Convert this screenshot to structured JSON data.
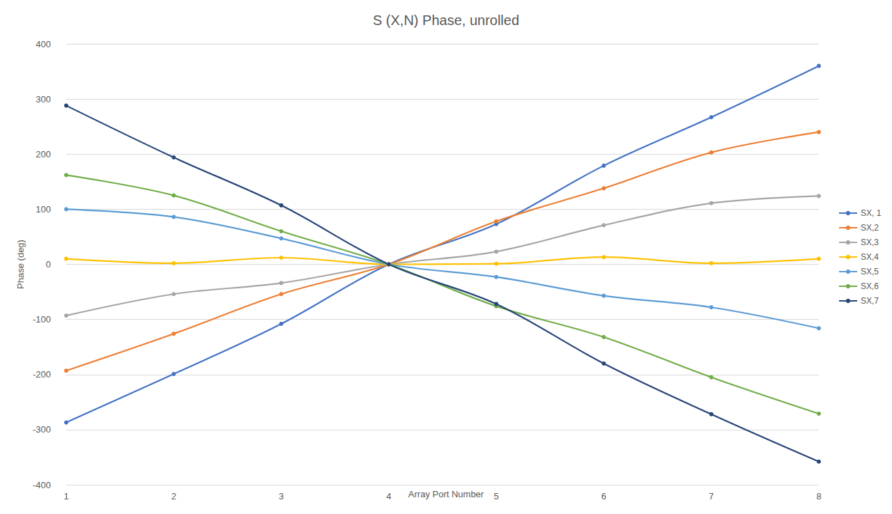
{
  "chart_data": {
    "type": "line",
    "title": "S (X,N) Phase, unrolled",
    "x_label": "Array Port Number",
    "y_label": "Phase (deg)",
    "categories": [
      "1",
      "2",
      "3",
      "4",
      "5",
      "6",
      "7",
      "8"
    ],
    "ylim": [
      -400,
      400
    ],
    "yticks": [
      -400,
      -300,
      -200,
      -100,
      0,
      100,
      200,
      300,
      400
    ],
    "grid": true,
    "legend": "right",
    "marker": "circle",
    "line_style": "solid",
    "series": [
      {
        "name": "SX, 1",
        "color": "#4472c4",
        "values": [
          -287,
          -199,
          -108,
          0,
          73,
          179,
          267,
          360
        ]
      },
      {
        "name": "SX,2",
        "color": "#ed7d31",
        "values": [
          -193,
          -126,
          -54,
          0,
          78,
          138,
          203,
          240
        ]
      },
      {
        "name": "SX,3",
        "color": "#a5a5a5",
        "values": [
          -93,
          -54,
          -34,
          0,
          23,
          71,
          111,
          124
        ]
      },
      {
        "name": "SX,4",
        "color": "#ffc000",
        "values": [
          10,
          2,
          12,
          0,
          1,
          13,
          2,
          10
        ]
      },
      {
        "name": "SX,5",
        "color": "#5b9bd5",
        "values": [
          100,
          86,
          47,
          0,
          -23,
          -57,
          -78,
          -116
        ]
      },
      {
        "name": "SX,6",
        "color": "#70ad47",
        "values": [
          162,
          125,
          60,
          0,
          -76,
          -132,
          -205,
          -271
        ]
      },
      {
        "name": "SX,7",
        "color": "#264478",
        "values": [
          288,
          194,
          107,
          0,
          -72,
          -180,
          -272,
          -358
        ]
      }
    ]
  }
}
